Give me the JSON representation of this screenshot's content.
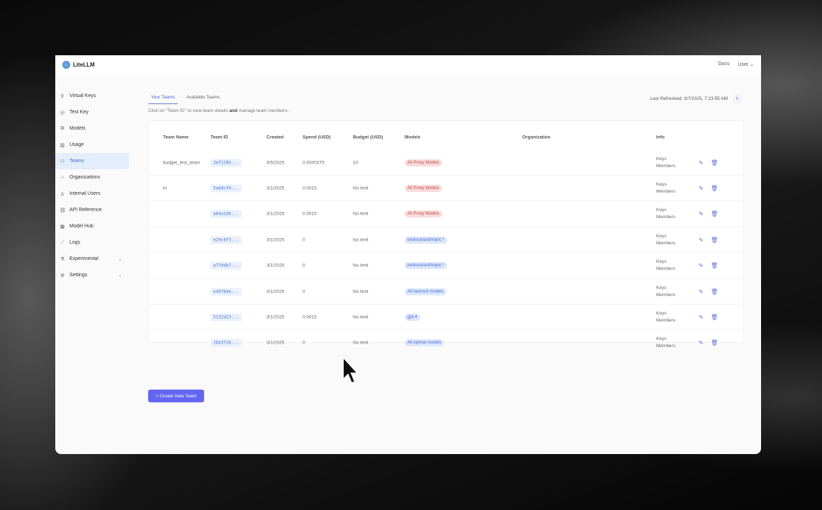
{
  "app": {
    "name": "LiteLLM"
  },
  "header": {
    "docs": "Docs",
    "user": "User"
  },
  "sidebar": {
    "items": [
      {
        "label": "Virtual Keys",
        "icon": "key-icon"
      },
      {
        "label": "Test Key",
        "icon": "play-icon"
      },
      {
        "label": "Models",
        "icon": "block-icon"
      },
      {
        "label": "Usage",
        "icon": "bar-chart-icon"
      },
      {
        "label": "Teams",
        "icon": "team-icon",
        "active": true
      },
      {
        "label": "Organizations",
        "icon": "bank-icon"
      },
      {
        "label": "Internal Users",
        "icon": "user-icon"
      },
      {
        "label": "API Reference",
        "icon": "api-icon"
      },
      {
        "label": "Model Hub",
        "icon": "apps-icon"
      },
      {
        "label": "Logs",
        "icon": "line-chart-icon"
      },
      {
        "label": "Experimental",
        "icon": "experiment-icon",
        "expandable": true
      },
      {
        "label": "Settings",
        "icon": "gear-icon",
        "expandable": true
      }
    ]
  },
  "tabs": [
    {
      "label": "Your Teams",
      "active": true
    },
    {
      "label": "Available Teams"
    }
  ],
  "hint": {
    "pre": "Click on \"Team ID\" to view team details ",
    "bold": "and",
    "post": " manage team members."
  },
  "refresh": {
    "label": "Last Refreshed: 3/7/2025, 7:23:55 AM"
  },
  "table": {
    "columns": [
      "Team Name",
      "Team ID",
      "Created",
      "Spend (USD)",
      "Budget (USD)",
      "Models",
      "Organization",
      "Info"
    ],
    "rows": [
      {
        "name": "budget_test_team",
        "id": "3ef2785...",
        "created": "3/5/2025",
        "spend": "0.0000375",
        "budget": "10",
        "model": "All Proxy Models",
        "model_type": "all",
        "info": [
          "Keys",
          "Members"
        ]
      },
      {
        "name": "hi",
        "id": "5a64cf0...",
        "created": "3/1/2025",
        "spend": "0.0015",
        "budget": "No limit",
        "model": "All Proxy Models",
        "model_type": "all",
        "info": [
          "Keys",
          "Members"
        ]
      },
      {
        "name": "",
        "id": "a64a1d6...",
        "created": "3/1/2025",
        "spend": "0.0015",
        "budget": "No limit",
        "model": "All Proxy Models",
        "model_type": "all",
        "info": [
          "Keys",
          "Members"
        ]
      },
      {
        "name": "",
        "id": "e29c6f3...",
        "created": "3/1/2025",
        "spend": "0",
        "budget": "No limit",
        "model": "bedrock/anthropic.*",
        "model_type": "specific",
        "info": [
          "Keys",
          "Members"
        ]
      },
      {
        "name": "",
        "id": "a77d4b7...",
        "created": "3/1/2025",
        "spend": "0",
        "budget": "No limit",
        "model": "bedrock/anthropic.*",
        "model_type": "specific",
        "info": [
          "Keys",
          "Members"
        ]
      },
      {
        "name": "",
        "id": "e497b4e...",
        "created": "3/1/2025",
        "spend": "0",
        "budget": "No limit",
        "model": "All bedrock models",
        "model_type": "specific",
        "info": [
          "Keys",
          "Members"
        ]
      },
      {
        "name": "",
        "id": "5132d23...",
        "created": "3/1/2025",
        "spend": "0.0015",
        "budget": "No limit",
        "model": "gpt-4",
        "model_type": "specific",
        "info": [
          "Keys",
          "Members"
        ]
      },
      {
        "name": "",
        "id": "2bb3f2b...",
        "created": "3/1/2025",
        "spend": "0",
        "budget": "No limit",
        "model": "All openai models",
        "model_type": "specific",
        "info": [
          "Keys",
          "Members"
        ]
      }
    ]
  },
  "create_button": "+ Create New Team",
  "colors": {
    "accent": "#6366f1",
    "all_badge_bg": "#f9dcdc",
    "all_badge_fg": "#c0504d",
    "specific_badge_bg": "#dde7fb",
    "specific_badge_fg": "#4a6fd0"
  }
}
